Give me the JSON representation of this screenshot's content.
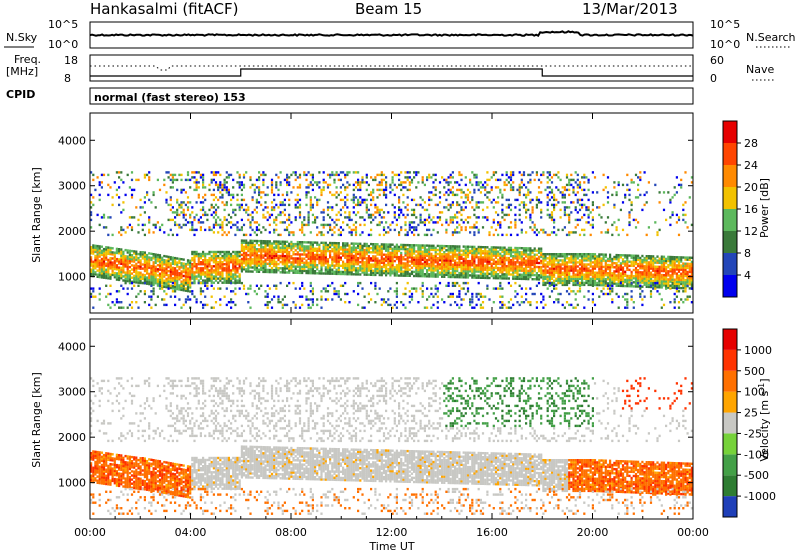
{
  "header": {
    "station": "Hankasalmi (fitACF)",
    "beam": "Beam 15",
    "date": "13/Mar/2013"
  },
  "nsky": {
    "label": "N.Sky",
    "tick_high": "10^5",
    "tick_low": "10^0",
    "right_high": "10^5",
    "right_low": "10^0",
    "right_label": "N.Search"
  },
  "freq": {
    "label_line1": "Freq.",
    "label_line2": "[MHz]",
    "tick_high": "18",
    "tick_low": "8",
    "right_high": "60",
    "right_low": "0",
    "right_label": "Nave"
  },
  "cpid": {
    "label": "CPID",
    "value": "normal (fast stereo) 153"
  },
  "chart_data": [
    {
      "type": "heatmap",
      "panel": "power",
      "ylabel": "Slant Range [km]",
      "yticks": [
        "4000",
        "3000",
        "2000",
        "1000"
      ],
      "ylim": [
        200,
        4600
      ],
      "xlim_hours": [
        0,
        24
      ],
      "colorbar": {
        "label": "Power [dB]",
        "ticks": [
          "28",
          "24",
          "20",
          "16",
          "12",
          "8",
          "4"
        ],
        "colors": [
          "#0000ee",
          "#2346b8",
          "#3a7a3a",
          "#5cb85c",
          "#f2c200",
          "#ff8a00",
          "#ff4500",
          "#e60000"
        ],
        "range": [
          0,
          32
        ]
      }
    },
    {
      "type": "heatmap",
      "panel": "velocity",
      "ylabel": "Slant Range [km]",
      "yticks": [
        "4000",
        "3000",
        "2000",
        "1000"
      ],
      "ylim": [
        200,
        4600
      ],
      "xlim_hours": [
        0,
        24
      ],
      "xticks": [
        "00:00",
        "04:00",
        "08:00",
        "12:00",
        "16:00",
        "20:00",
        "00:00"
      ],
      "xlabel": "Time UT",
      "colorbar": {
        "label": "Velocity [m s^-1]",
        "ticks": [
          "1000",
          "500",
          "100",
          "25",
          "-25",
          "-100",
          "-500",
          "-1000"
        ],
        "colors": [
          "#1f3fb8",
          "#2e7d32",
          "#43a047",
          "#76d23a",
          "#c8c8c4",
          "#ffa500",
          "#ff7000",
          "#ff3300",
          "#e60000"
        ]
      }
    }
  ]
}
